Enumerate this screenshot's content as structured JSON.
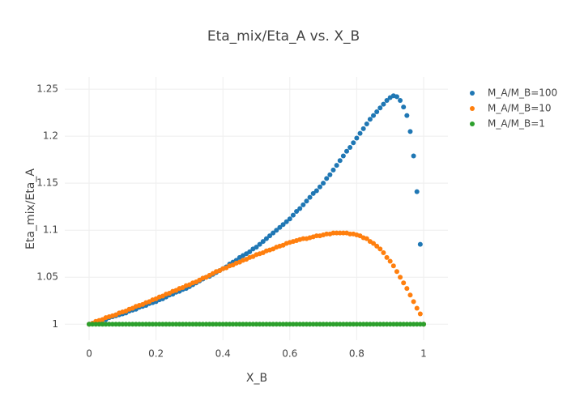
{
  "chart_data": {
    "type": "scatter",
    "title": "Eta_mix/Eta_A vs. X_B",
    "xlabel": "X_B",
    "ylabel": "Eta_mix/Eta_A",
    "x": [
      0,
      0.01,
      0.02,
      0.03,
      0.04,
      0.05,
      0.06,
      0.07,
      0.08,
      0.09,
      0.1,
      0.11,
      0.12,
      0.13,
      0.14,
      0.15,
      0.16,
      0.17,
      0.18,
      0.19,
      0.2,
      0.21,
      0.22,
      0.23,
      0.24,
      0.25,
      0.26,
      0.27,
      0.28,
      0.29,
      0.3,
      0.31,
      0.32,
      0.33,
      0.34,
      0.35,
      0.36,
      0.37,
      0.38,
      0.39,
      0.4,
      0.41,
      0.42,
      0.43,
      0.44,
      0.45,
      0.46,
      0.47,
      0.48,
      0.49,
      0.5,
      0.51,
      0.52,
      0.53,
      0.54,
      0.55,
      0.56,
      0.57,
      0.58,
      0.59,
      0.6,
      0.61,
      0.62,
      0.63,
      0.64,
      0.65,
      0.66,
      0.67,
      0.68,
      0.69,
      0.7,
      0.71,
      0.72,
      0.73,
      0.74,
      0.75,
      0.76,
      0.77,
      0.78,
      0.79,
      0.8,
      0.81,
      0.82,
      0.83,
      0.84,
      0.85,
      0.86,
      0.87,
      0.88,
      0.89,
      0.9,
      0.91,
      0.92,
      0.93,
      0.94,
      0.95,
      0.96,
      0.97,
      0.98,
      0.99,
      1
    ],
    "series": [
      {
        "name": "M_A/M_B=100",
        "color": "#1f77b4",
        "values": [
          1.0,
          1.001,
          1.002,
          1.003,
          1.004,
          1.005,
          1.007,
          1.008,
          1.009,
          1.01,
          1.011,
          1.012,
          1.014,
          1.015,
          1.016,
          1.018,
          1.019,
          1.02,
          1.022,
          1.023,
          1.024,
          1.026,
          1.027,
          1.029,
          1.031,
          1.032,
          1.034,
          1.035,
          1.037,
          1.038,
          1.04,
          1.042,
          1.044,
          1.046,
          1.048,
          1.05,
          1.051,
          1.053,
          1.055,
          1.057,
          1.059,
          1.061,
          1.064,
          1.066,
          1.068,
          1.071,
          1.073,
          1.075,
          1.077,
          1.08,
          1.082,
          1.085,
          1.088,
          1.091,
          1.094,
          1.097,
          1.1,
          1.103,
          1.106,
          1.109,
          1.112,
          1.116,
          1.12,
          1.123,
          1.127,
          1.131,
          1.135,
          1.139,
          1.142,
          1.146,
          1.15,
          1.155,
          1.159,
          1.164,
          1.169,
          1.174,
          1.179,
          1.184,
          1.188,
          1.193,
          1.198,
          1.203,
          1.208,
          1.213,
          1.218,
          1.222,
          1.226,
          1.23,
          1.234,
          1.238,
          1.241,
          1.243,
          1.242,
          1.238,
          1.231,
          1.222,
          1.205,
          1.179,
          1.141,
          1.085,
          1.0
        ]
      },
      {
        "name": "M_A/M_B=10",
        "color": "#ff7f0e",
        "values": [
          1.0,
          1.001,
          1.003,
          1.004,
          1.005,
          1.007,
          1.008,
          1.009,
          1.01,
          1.012,
          1.013,
          1.014,
          1.016,
          1.017,
          1.019,
          1.02,
          1.021,
          1.023,
          1.024,
          1.026,
          1.027,
          1.029,
          1.03,
          1.032,
          1.033,
          1.035,
          1.036,
          1.038,
          1.039,
          1.041,
          1.042,
          1.044,
          1.045,
          1.047,
          1.049,
          1.05,
          1.052,
          1.054,
          1.056,
          1.057,
          1.059,
          1.06,
          1.062,
          1.063,
          1.065,
          1.066,
          1.068,
          1.069,
          1.071,
          1.072,
          1.074,
          1.075,
          1.076,
          1.078,
          1.079,
          1.08,
          1.082,
          1.083,
          1.084,
          1.086,
          1.087,
          1.088,
          1.089,
          1.09,
          1.091,
          1.091,
          1.092,
          1.093,
          1.094,
          1.094,
          1.095,
          1.096,
          1.096,
          1.097,
          1.097,
          1.097,
          1.097,
          1.097,
          1.096,
          1.096,
          1.095,
          1.094,
          1.092,
          1.091,
          1.088,
          1.086,
          1.083,
          1.08,
          1.076,
          1.071,
          1.067,
          1.062,
          1.056,
          1.05,
          1.044,
          1.038,
          1.031,
          1.024,
          1.017,
          1.011,
          1.0
        ]
      },
      {
        "name": "M_A/M_B=1",
        "color": "#2ca02c",
        "values": [
          1,
          1,
          1,
          1,
          1,
          1,
          1,
          1,
          1,
          1,
          1,
          1,
          1,
          1,
          1,
          1,
          1,
          1,
          1,
          1,
          1,
          1,
          1,
          1,
          1,
          1,
          1,
          1,
          1,
          1,
          1,
          1,
          1,
          1,
          1,
          1,
          1,
          1,
          1,
          1,
          1,
          1,
          1,
          1,
          1,
          1,
          1,
          1,
          1,
          1,
          1,
          1,
          1,
          1,
          1,
          1,
          1,
          1,
          1,
          1,
          1,
          1,
          1,
          1,
          1,
          1,
          1,
          1,
          1,
          1,
          1,
          1,
          1,
          1,
          1,
          1,
          1,
          1,
          1,
          1,
          1,
          1,
          1,
          1,
          1,
          1,
          1,
          1,
          1,
          1,
          1,
          1,
          1,
          1,
          1,
          1,
          1,
          1,
          1,
          1,
          1
        ]
      }
    ],
    "xlim": [
      -0.0727,
      1.0727
    ],
    "ylim": [
      0.983,
      1.263
    ],
    "xticks": [
      0,
      0.2,
      0.4,
      0.6,
      0.8,
      1
    ],
    "yticks": [
      1,
      1.05,
      1.1,
      1.15,
      1.2,
      1.25
    ],
    "grid": true
  }
}
